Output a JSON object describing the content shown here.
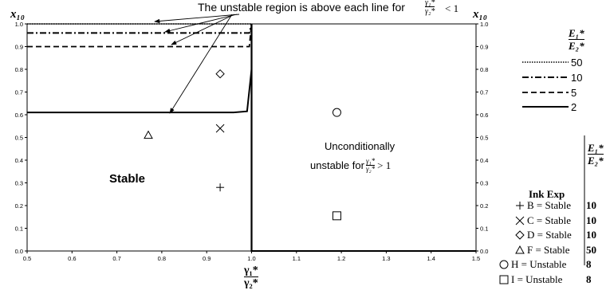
{
  "chart_data": {
    "type": "line",
    "title": "",
    "annotation_top": "The unstable region is above each line for",
    "xlim": [
      0.5,
      1.5
    ],
    "ylim": [
      0.0,
      1.0
    ],
    "x_ticks": [
      "0.5",
      "0.6",
      "0.7",
      "0.8",
      "0.9",
      "1.0",
      "1.1",
      "1.2",
      "1.3",
      "1.4",
      "1.5"
    ],
    "y_ticks": [
      "0.0",
      "0.1",
      "0.2",
      "0.3",
      "0.4",
      "0.5",
      "0.6",
      "0.7",
      "0.8",
      "0.9",
      "1.0"
    ],
    "y_label_left": "x₁₀",
    "y_label_right": "x₁₀",
    "x_label": "γ₁*/γ₂*",
    "region_labels": {
      "stable": "Stable",
      "unconditional_line1": "Unconditionally",
      "unconditional_line2": "unstable for"
    },
    "series": [
      {
        "name": "50",
        "style": "dotted",
        "x": [
          0.5,
          0.995,
          1.0
        ],
        "y": [
          1.0,
          1.0,
          1.0
        ]
      },
      {
        "name": "10",
        "style": "dashdot",
        "x": [
          0.5,
          0.995,
          1.0
        ],
        "y": [
          0.96,
          0.96,
          1.0
        ]
      },
      {
        "name": "5",
        "style": "dashed",
        "x": [
          0.5,
          0.995,
          1.0
        ],
        "y": [
          0.9,
          0.9,
          1.0
        ]
      },
      {
        "name": "2",
        "style": "solid",
        "x": [
          0.5,
          0.96,
          0.99,
          1.0,
          1.0,
          1.5
        ],
        "y": [
          0.61,
          0.61,
          0.615,
          0.8,
          0.0,
          0.0
        ]
      }
    ],
    "points": [
      {
        "id": "B",
        "marker": "plus",
        "x": 0.93,
        "y": 0.28,
        "text": "B = Stable",
        "exp": "10"
      },
      {
        "id": "C",
        "marker": "cross",
        "x": 0.93,
        "y": 0.54,
        "text": "C = Stable",
        "exp": "10"
      },
      {
        "id": "D",
        "marker": "diamond",
        "x": 0.93,
        "y": 0.78,
        "text": "D = Stable",
        "exp": "10"
      },
      {
        "id": "F",
        "marker": "triangle",
        "x": 0.77,
        "y": 0.51,
        "text": "F = Stable",
        "exp": "50"
      },
      {
        "id": "H",
        "marker": "circle",
        "x": 1.19,
        "y": 0.61,
        "text": "H = Unstable",
        "exp": "8"
      },
      {
        "id": "I",
        "marker": "square",
        "x": 1.19,
        "y": 0.155,
        "text": "I = Unstable",
        "exp": "8"
      }
    ],
    "legend": {
      "header": "E₁*/E₂*",
      "placement": "right"
    },
    "ink_table": {
      "header_ink": "Ink",
      "header_exp": "Exp",
      "header_ratio": "E₁*/E₂*"
    },
    "colors": {
      "lines": "#000000",
      "background": "#ffffff"
    }
  }
}
